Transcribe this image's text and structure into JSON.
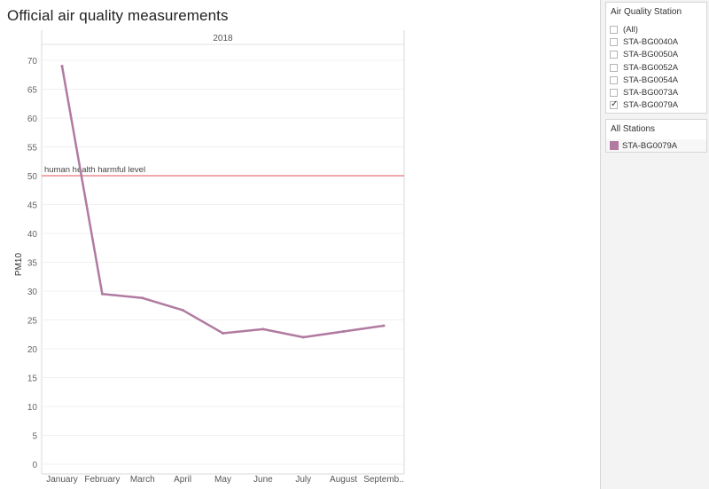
{
  "page": {
    "title": "Official air quality measurements"
  },
  "filter": {
    "title": "Air Quality Station",
    "items": [
      {
        "label": "(All)",
        "checked": false
      },
      {
        "label": "STA-BG0040A",
        "checked": false
      },
      {
        "label": "STA-BG0050A",
        "checked": false
      },
      {
        "label": "STA-BG0052A",
        "checked": false
      },
      {
        "label": "STA-BG0054A",
        "checked": false
      },
      {
        "label": "STA-BG0073A",
        "checked": false
      },
      {
        "label": "STA-BG0079A",
        "checked": true
      }
    ]
  },
  "legend": {
    "title": "All Stations",
    "items": [
      {
        "label": "STA-BG0079A",
        "color": "#b07aa1"
      }
    ]
  },
  "chart_data": {
    "type": "line",
    "header": "2018",
    "ylabel": "PM10",
    "xlabel": "",
    "ylim": [
      0,
      70
    ],
    "yticks": [
      0,
      5,
      10,
      15,
      20,
      25,
      30,
      35,
      40,
      45,
      50,
      55,
      60,
      65,
      70
    ],
    "categories": [
      "January",
      "February",
      "March",
      "April",
      "May",
      "June",
      "July",
      "August",
      "Septemb.."
    ],
    "series": [
      {
        "name": "STA-BG0079A",
        "color": "#b07aa1",
        "values": [
          69,
          29.5,
          28.8,
          26.7,
          22.7,
          23.4,
          22.0,
          23.0,
          24.0
        ]
      }
    ],
    "reference_line": {
      "value": 50,
      "label": "human health harmful level",
      "color": "#e8777a"
    },
    "grid": true
  }
}
